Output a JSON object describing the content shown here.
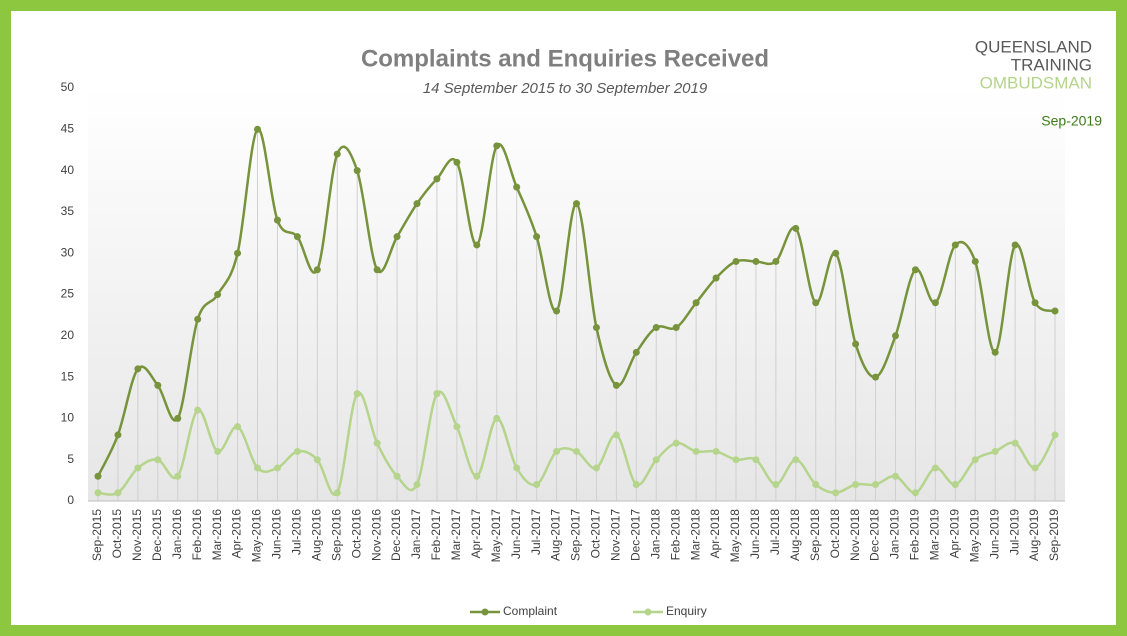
{
  "chart_data": {
    "type": "line",
    "title": "Complaints and Enquiries Received",
    "subtitle": "14 September 2015 to 30 September 2019",
    "logo": [
      "QUEENSLAND",
      "TRAINING",
      "OMBUDSMAN"
    ],
    "date_label": "Sep-2019",
    "categories": [
      "Sep-2015",
      "Oct-2015",
      "Nov-2015",
      "Dec-2015",
      "Jan-2016",
      "Feb-2016",
      "Mar-2016",
      "Apr-2016",
      "May-2016",
      "Jun-2016",
      "Jul-2016",
      "Aug-2016",
      "Sep-2016",
      "Oct-2016",
      "Nov-2016",
      "Dec-2016",
      "Jan-2017",
      "Feb-2017",
      "Mar-2017",
      "Apr-2017",
      "May-2017",
      "Jun-2017",
      "Jul-2017",
      "Aug-2017",
      "Sep-2017",
      "Oct-2017",
      "Nov-2017",
      "Dec-2017",
      "Jan-2018",
      "Feb-2018",
      "Mar-2018",
      "Apr-2018",
      "May-2018",
      "Jun-2018",
      "Jul-2018",
      "Aug-2018",
      "Sep-2018",
      "Oct-2018",
      "Nov-2018",
      "Dec-2018",
      "Jan-2019",
      "Feb-2019",
      "Mar-2019",
      "Apr-2019",
      "May-2019",
      "Jun-2019",
      "Jul-2019",
      "Aug-2019",
      "Sep-2019"
    ],
    "series": [
      {
        "name": "Complaint",
        "color": "#77933c",
        "values": [
          3,
          8,
          16,
          14,
          10,
          22,
          25,
          30,
          45,
          34,
          32,
          28,
          42,
          40,
          28,
          32,
          36,
          39,
          41,
          31,
          43,
          38,
          32,
          23,
          36,
          21,
          14,
          18,
          21,
          21,
          24,
          27,
          29,
          29,
          29,
          33,
          24,
          30,
          19,
          15,
          20,
          28,
          24,
          31,
          29,
          18,
          31,
          24,
          23
        ]
      },
      {
        "name": "Enquiry",
        "color": "#b5d48c",
        "values": [
          1,
          1,
          4,
          5,
          3,
          11,
          6,
          9,
          4,
          4,
          6,
          5,
          1,
          13,
          7,
          3,
          2,
          13,
          9,
          3,
          10,
          4,
          2,
          6,
          6,
          4,
          8,
          2,
          5,
          7,
          6,
          6,
          5,
          5,
          2,
          5,
          2,
          1,
          2,
          2,
          3,
          1,
          4,
          2,
          5,
          6,
          7,
          4,
          8
        ]
      }
    ],
    "ylim": [
      0,
      50
    ],
    "yticks": [
      0,
      5,
      10,
      15,
      20,
      25,
      30,
      35,
      40,
      45,
      50
    ],
    "grid": false,
    "drop_lines": true,
    "smooth": true,
    "legend": "bottom"
  }
}
